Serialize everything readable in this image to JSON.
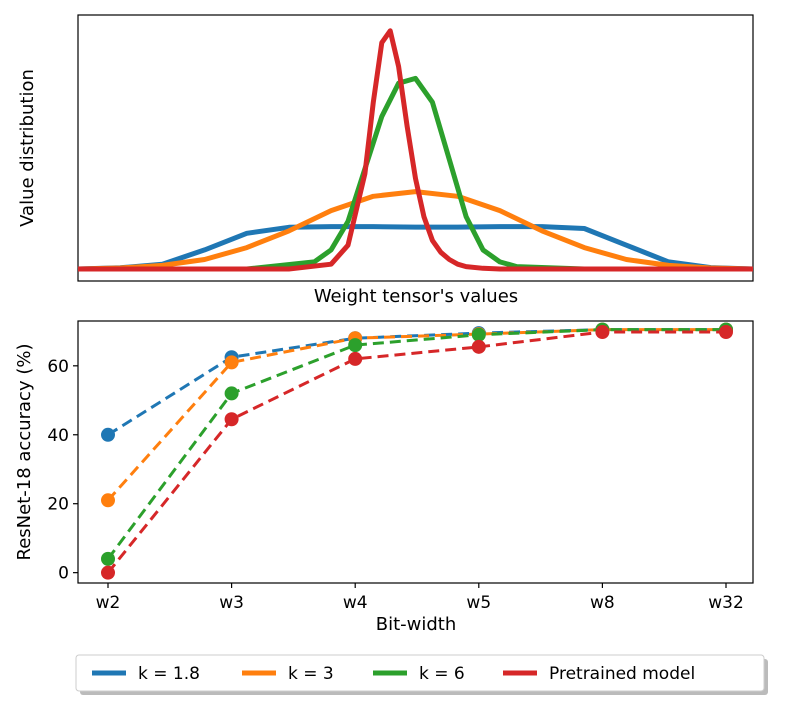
{
  "chart_data": [
    {
      "type": "line",
      "xlabel": "Weight tensor's values",
      "ylabel": "Value distribution",
      "x_ticks": [],
      "y_ticks": [],
      "grid": false,
      "x_range": [
        -4,
        4
      ],
      "y_range": [
        0,
        1.02
      ],
      "series": [
        {
          "name": "k = 1.8",
          "color": "#1f77b4",
          "x": [
            -4,
            -3.5,
            -3,
            -2.5,
            -2,
            -1.5,
            -1,
            -0.5,
            0,
            0.5,
            1,
            1.5,
            2,
            2.5,
            3,
            3.5,
            4
          ],
          "y": [
            0,
            0.005,
            0.02,
            0.08,
            0.15,
            0.175,
            0.178,
            0.178,
            0.176,
            0.176,
            0.178,
            0.178,
            0.17,
            0.1,
            0.03,
            0.006,
            0.0
          ]
        },
        {
          "name": "k = 3",
          "color": "#ff7f0e",
          "x": [
            -4,
            -3.5,
            -3,
            -2.5,
            -2,
            -1.5,
            -1,
            -0.5,
            0,
            0.5,
            1,
            1.5,
            2,
            2.5,
            3,
            3.5,
            4
          ],
          "y": [
            0,
            0.004,
            0.015,
            0.04,
            0.09,
            0.16,
            0.245,
            0.305,
            0.325,
            0.305,
            0.245,
            0.16,
            0.09,
            0.04,
            0.015,
            0.004,
            0
          ]
        },
        {
          "name": "k = 6",
          "color": "#2ca02c",
          "x": [
            -4,
            -2,
            -1.2,
            -1,
            -0.8,
            -0.6,
            -0.4,
            -0.2,
            0,
            0.2,
            0.4,
            0.6,
            0.8,
            1,
            1.2,
            2,
            4
          ],
          "y": [
            0,
            0,
            0.03,
            0.08,
            0.2,
            0.42,
            0.64,
            0.78,
            0.8,
            0.7,
            0.46,
            0.22,
            0.08,
            0.03,
            0.01,
            0,
            0
          ]
        },
        {
          "name": "Pretrained model",
          "color": "#d62728",
          "x": [
            -4,
            -1.5,
            -1,
            -0.8,
            -0.6,
            -0.5,
            -0.4,
            -0.3,
            -0.2,
            -0.1,
            0,
            0.1,
            0.2,
            0.3,
            0.4,
            0.5,
            0.6,
            0.8,
            1.0,
            1.5,
            4
          ],
          "y": [
            0,
            0,
            0.02,
            0.1,
            0.4,
            0.7,
            0.95,
            1.0,
            0.85,
            0.6,
            0.38,
            0.22,
            0.12,
            0.07,
            0.04,
            0.02,
            0.01,
            0.003,
            0,
            0,
            0
          ]
        }
      ]
    },
    {
      "type": "line",
      "xlabel": "Bit-width",
      "ylabel": "ResNet-18 accuracy (%)",
      "categories": [
        "w2",
        "w3",
        "w4",
        "w5",
        "w8",
        "w32"
      ],
      "y_ticks": [
        "0",
        "20",
        "40",
        "60"
      ],
      "ylim": [
        -3,
        73
      ],
      "grid": false,
      "line_style": "dashed",
      "markers": "circle",
      "series": [
        {
          "name": "k = 1.8",
          "color": "#1f77b4",
          "values": [
            40,
            62.5,
            68,
            69.5,
            70.5,
            70.5
          ]
        },
        {
          "name": "k = 3",
          "color": "#ff7f0e",
          "values": [
            21,
            61,
            68,
            69.2,
            70.5,
            70.5
          ]
        },
        {
          "name": "k = 6",
          "color": "#2ca02c",
          "values": [
            4,
            52,
            66,
            69,
            70.5,
            70.5
          ]
        },
        {
          "name": "Pretrained model",
          "color": "#d62728",
          "values": [
            0,
            44.5,
            62,
            65.5,
            69.8,
            69.8
          ]
        }
      ]
    }
  ],
  "legend": {
    "placement": "bottom",
    "entries": [
      {
        "label": "k = 1.8",
        "color": "#1f77b4"
      },
      {
        "label": "k = 3",
        "color": "#ff7f0e"
      },
      {
        "label": "k = 6",
        "color": "#2ca02c"
      },
      {
        "label": "Pretrained model",
        "color": "#d62728"
      }
    ]
  }
}
